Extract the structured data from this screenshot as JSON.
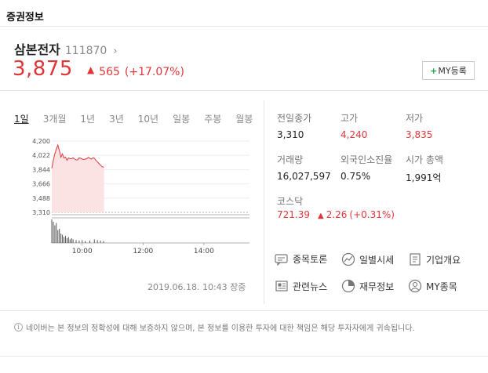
{
  "section_title": "증권정보",
  "stock": {
    "name": "삼본전자",
    "code": "111870",
    "price": "3,875",
    "change": "565",
    "change_rate": "(+17.07%)",
    "my_button_label": "MY등록"
  },
  "periods": [
    "1일",
    "3개월",
    "1년",
    "3년",
    "10년",
    "일봉",
    "주봉",
    "월봉"
  ],
  "active_period": "1일",
  "timestamp": "2019.06.18. 10:43 장중",
  "stats": {
    "prev_close_label": "전일종가",
    "prev_close": "3,310",
    "high_label": "고가",
    "high": "4,240",
    "low_label": "저가",
    "low": "3,835",
    "volume_label": "거래량",
    "volume": "16,027,597",
    "foreign_label": "외국인소진율",
    "foreign": "0.75%",
    "mcap_label": "시가 총액",
    "mcap": "1,991억"
  },
  "index": {
    "label": "코스닥",
    "value": "721.39",
    "change": "2.26",
    "change_rate": "(+0.31%)"
  },
  "links": [
    {
      "label": "종목토론",
      "icon": "discussion-icon"
    },
    {
      "label": "일별시세",
      "icon": "daily-price-icon"
    },
    {
      "label": "기업개요",
      "icon": "company-overview-icon"
    },
    {
      "label": "관련뉴스",
      "icon": "news-icon"
    },
    {
      "label": "재무정보",
      "icon": "financial-icon"
    },
    {
      "label": "MY종목",
      "icon": "my-stock-icon"
    }
  ],
  "notice": "네이버는 본 정보의 정확성에 대해 보증하지 않으며, 본 정보를 이용한 투자에 대한 책임은 해당 투자자에게 귀속됩니다.",
  "colors": {
    "up": "#e0363a",
    "fill": "#fbe3e4",
    "line": "#555555"
  },
  "chart_data": {
    "type": "line",
    "y_ticks": [
      "4,200",
      "4,022",
      "3,844",
      "3,666",
      "3,488",
      "3,310"
    ],
    "x_ticks": [
      "10:00",
      "12:00",
      "14:00"
    ],
    "ylim": [
      3310,
      4200
    ],
    "baseline": 3310,
    "x_range_hours": [
      9.0,
      15.5
    ],
    "price_series": [
      [
        9.0,
        3860
      ],
      [
        9.05,
        3960
      ],
      [
        9.1,
        4040
      ],
      [
        9.15,
        4100
      ],
      [
        9.2,
        4150
      ],
      [
        9.25,
        4080
      ],
      [
        9.3,
        4000
      ],
      [
        9.35,
        4040
      ],
      [
        9.4,
        3990
      ],
      [
        9.45,
        4000
      ],
      [
        9.5,
        3960
      ],
      [
        9.55,
        3990
      ],
      [
        9.6,
        3980
      ],
      [
        9.65,
        3980
      ],
      [
        9.7,
        3990
      ],
      [
        9.75,
        3975
      ],
      [
        9.8,
        3965
      ],
      [
        9.85,
        3965
      ],
      [
        9.9,
        3990
      ],
      [
        9.95,
        3985
      ],
      [
        10.0,
        3975
      ],
      [
        10.05,
        3970
      ],
      [
        10.1,
        3975
      ],
      [
        10.15,
        3980
      ],
      [
        10.2,
        3995
      ],
      [
        10.25,
        3985
      ],
      [
        10.3,
        3975
      ],
      [
        10.35,
        3990
      ],
      [
        10.4,
        3985
      ],
      [
        10.45,
        3960
      ],
      [
        10.5,
        3940
      ],
      [
        10.55,
        3920
      ],
      [
        10.6,
        3900
      ],
      [
        10.65,
        3880
      ],
      [
        10.717,
        3875
      ]
    ],
    "volume_series": [
      [
        9.0,
        1.0
      ],
      [
        9.05,
        0.9
      ],
      [
        9.1,
        0.75
      ],
      [
        9.15,
        0.85
      ],
      [
        9.2,
        0.55
      ],
      [
        9.25,
        0.6
      ],
      [
        9.3,
        0.4
      ],
      [
        9.35,
        0.35
      ],
      [
        9.4,
        0.25
      ],
      [
        9.45,
        0.3
      ],
      [
        9.5,
        0.2
      ],
      [
        9.55,
        0.25
      ],
      [
        9.6,
        0.15
      ],
      [
        9.65,
        0.2
      ],
      [
        9.7,
        0.15
      ],
      [
        9.8,
        0.12
      ],
      [
        9.9,
        0.1
      ],
      [
        10.0,
        0.12
      ],
      [
        10.1,
        0.08
      ],
      [
        10.25,
        0.1
      ],
      [
        10.4,
        0.15
      ],
      [
        10.5,
        0.12
      ],
      [
        10.6,
        0.1
      ],
      [
        10.7,
        0.08
      ]
    ]
  }
}
